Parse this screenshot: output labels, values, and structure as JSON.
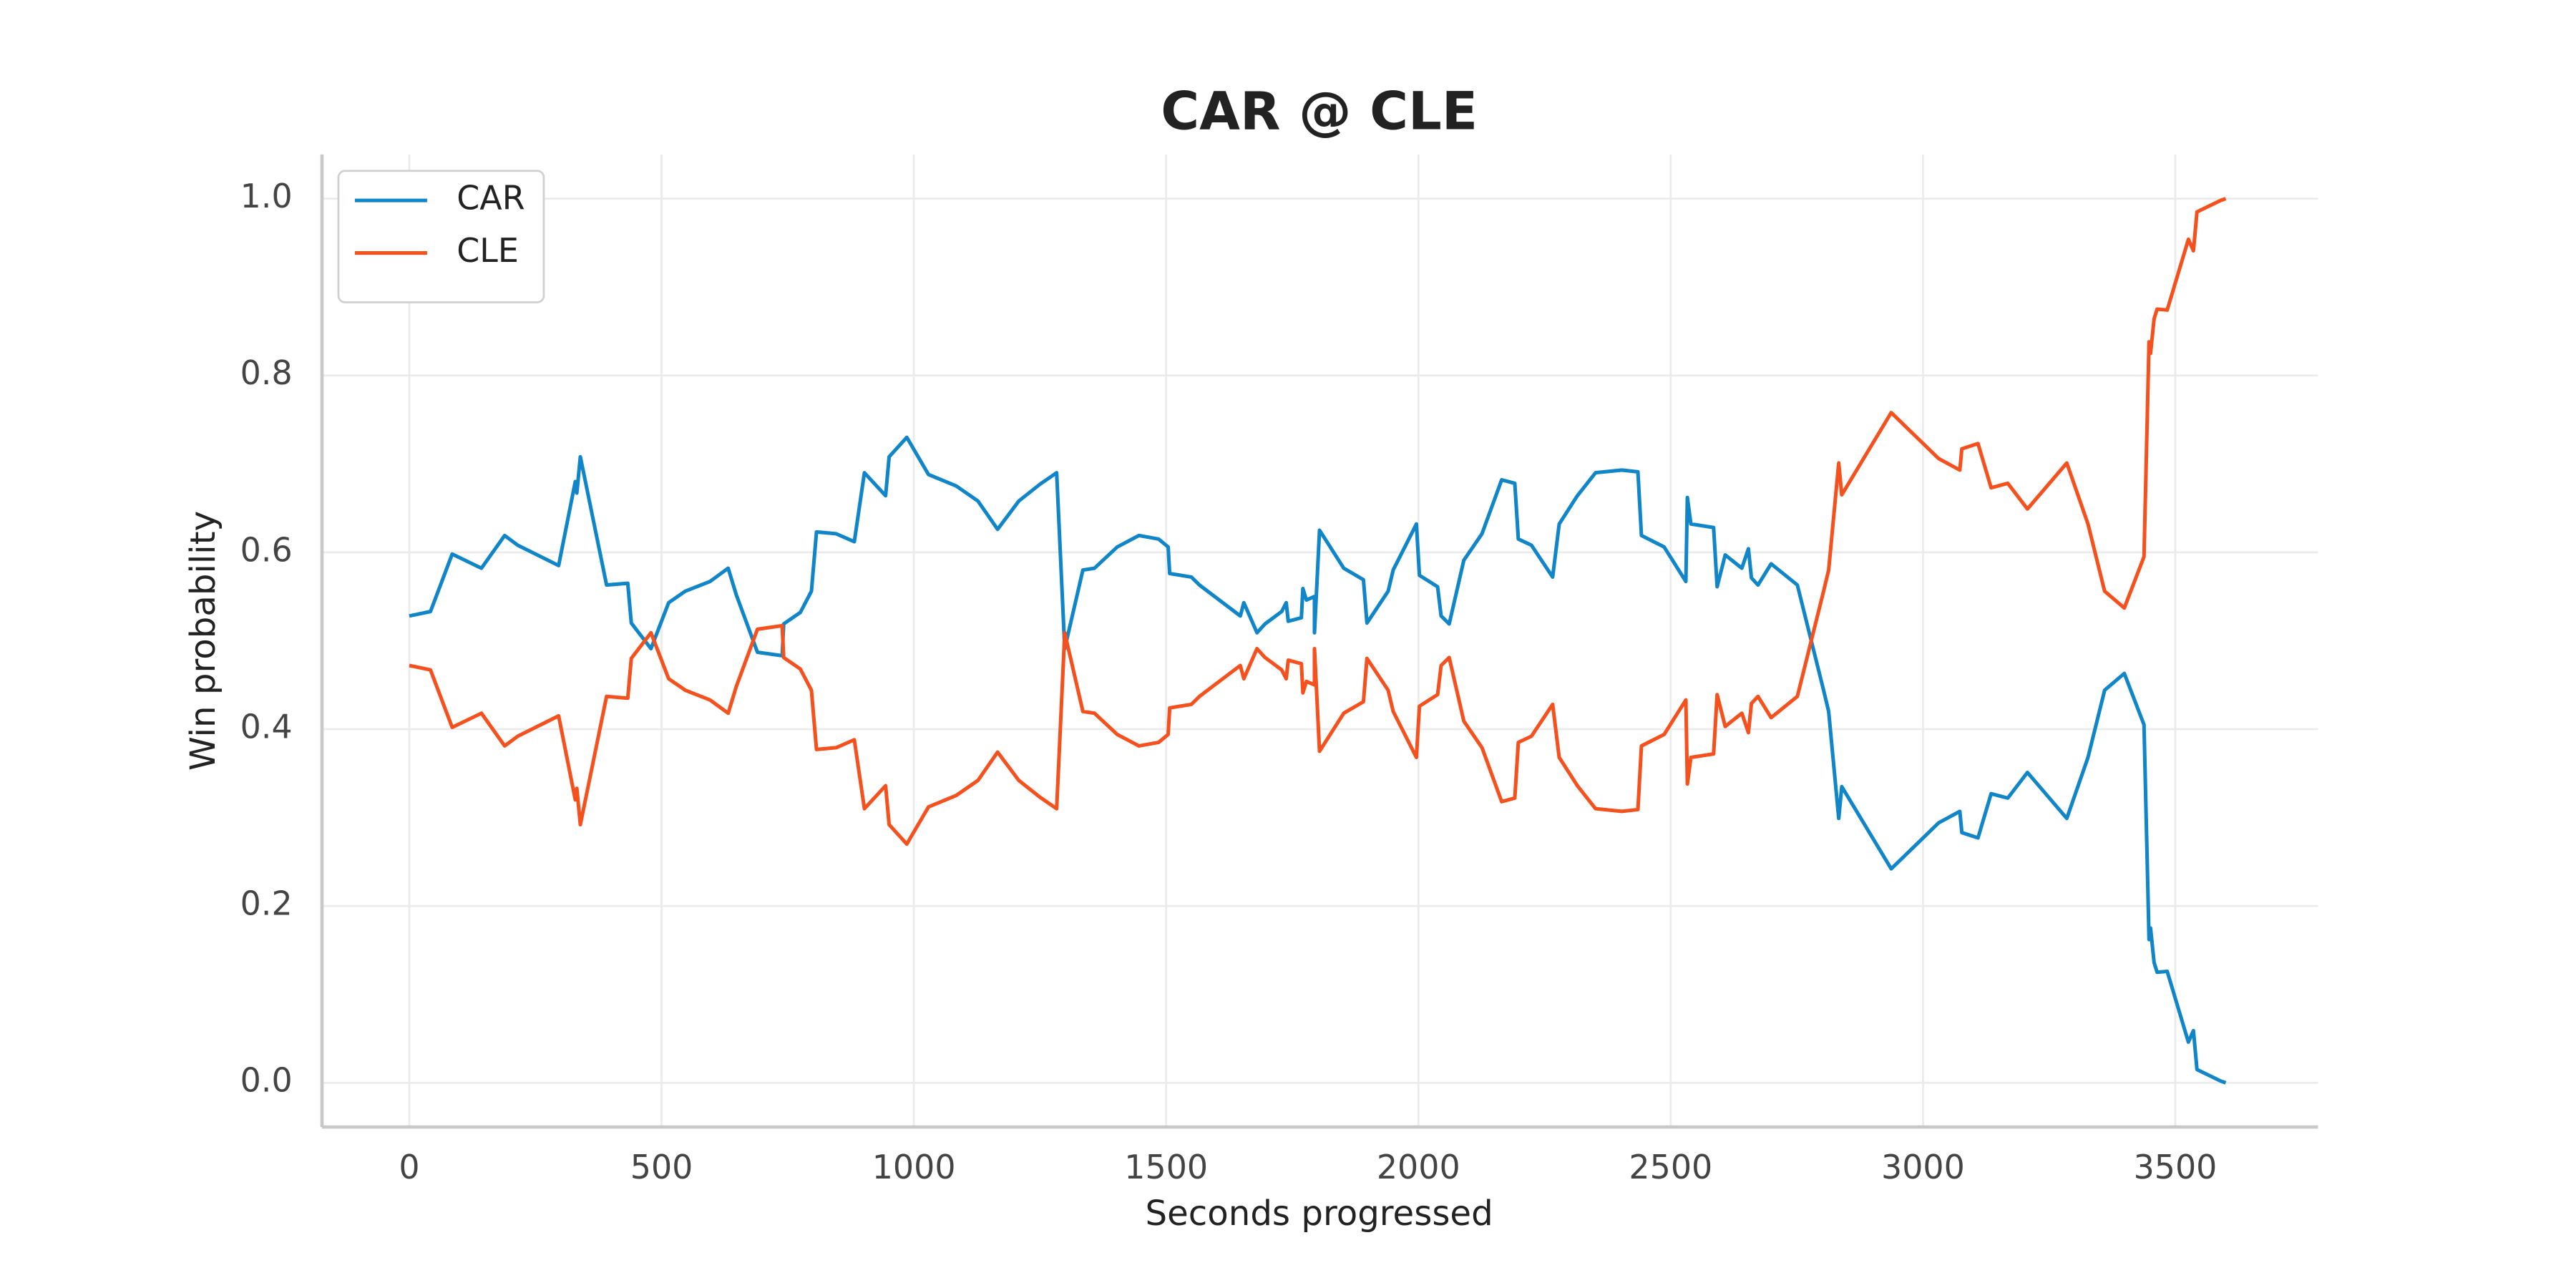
{
  "chart_data": {
    "type": "line",
    "title": "CAR @ CLE",
    "x_label": "Seconds progressed",
    "y_label": "Win probability",
    "xlim": [
      -173,
      3783
    ],
    "ylim": [
      -0.05,
      1.05
    ],
    "xticks": [
      0,
      500,
      1000,
      1500,
      2000,
      2500,
      3000,
      3500
    ],
    "yticks": [
      {
        "value": 0,
        "label": "0.0"
      },
      0.2,
      0.4,
      0.6,
      0.8,
      {
        "value": 1,
        "label": "1.0"
      }
    ],
    "grid": true,
    "legend": "upper-left",
    "x": [
      0,
      42,
      85,
      143,
      189,
      215,
      296,
      329,
      332,
      339,
      391,
      433,
      440,
      479,
      514,
      547,
      596,
      632,
      648,
      690,
      739,
      742,
      775,
      797,
      807,
      846,
      882,
      902,
      944,
      951,
      986,
      1029,
      1084,
      1127,
      1166,
      1208,
      1250,
      1283,
      1299,
      1335,
      1358,
      1403,
      1446,
      1485,
      1504,
      1507,
      1550,
      1566,
      1647,
      1654,
      1680,
      1696,
      1729,
      1738,
      1742,
      1768,
      1771,
      1778,
      1794,
      1794,
      1804,
      1852,
      1891,
      1898,
      1940,
      1950,
      1996,
      2002,
      2038,
      2045,
      2061,
      2090,
      2126,
      2165,
      2191,
      2198,
      2224,
      2266,
      2279,
      2315,
      2351,
      2403,
      2435,
      2442,
      2487,
      2530,
      2533,
      2540,
      2585,
      2592,
      2608,
      2641,
      2654,
      2660,
      2673,
      2699,
      2751,
      2803,
      2813,
      2833,
      2839,
      2937,
      3031,
      3073,
      3077,
      3109,
      3135,
      3168,
      3207,
      3285,
      3327,
      3360,
      3399,
      3438,
      3448,
      3451,
      3458,
      3464,
      3484,
      3526,
      3536,
      3543,
      3590,
      3600
    ],
    "series": [
      {
        "name": "CAR",
        "color": "#1085c8",
        "values": [
          0.528,
          0.533,
          0.598,
          0.582,
          0.619,
          0.608,
          0.585,
          0.68,
          0.667,
          0.708,
          0.563,
          0.565,
          0.52,
          0.491,
          0.543,
          0.556,
          0.567,
          0.582,
          0.552,
          0.487,
          0.483,
          0.519,
          0.532,
          0.556,
          0.623,
          0.621,
          0.612,
          0.69,
          0.664,
          0.708,
          0.73,
          0.688,
          0.675,
          0.658,
          0.626,
          0.658,
          0.677,
          0.69,
          0.491,
          0.58,
          0.582,
          0.606,
          0.619,
          0.615,
          0.606,
          0.576,
          0.572,
          0.563,
          0.528,
          0.543,
          0.509,
          0.519,
          0.533,
          0.543,
          0.522,
          0.526,
          0.559,
          0.546,
          0.55,
          0.509,
          0.625,
          0.582,
          0.569,
          0.52,
          0.556,
          0.58,
          0.632,
          0.574,
          0.561,
          0.528,
          0.519,
          0.591,
          0.621,
          0.682,
          0.678,
          0.615,
          0.608,
          0.572,
          0.632,
          0.664,
          0.69,
          0.693,
          0.691,
          0.619,
          0.606,
          0.567,
          0.662,
          0.632,
          0.628,
          0.561,
          0.597,
          0.582,
          0.604,
          0.571,
          0.563,
          0.587,
          0.563,
          0.444,
          0.42,
          0.299,
          0.335,
          0.242,
          0.294,
          0.307,
          0.283,
          0.277,
          0.327,
          0.322,
          0.351,
          0.299,
          0.368,
          0.444,
          0.463,
          0.405,
          0.162,
          0.175,
          0.136,
          0.125,
          0.126,
          0.046,
          0.059,
          0.015,
          0.002,
          0.0
        ]
      },
      {
        "name": "CLE",
        "color": "#f4511e",
        "values": [
          0.472,
          0.467,
          0.402,
          0.418,
          0.381,
          0.392,
          0.415,
          0.32,
          0.333,
          0.292,
          0.437,
          0.435,
          0.48,
          0.509,
          0.457,
          0.444,
          0.433,
          0.418,
          0.448,
          0.513,
          0.517,
          0.481,
          0.468,
          0.444,
          0.377,
          0.379,
          0.388,
          0.31,
          0.336,
          0.292,
          0.27,
          0.312,
          0.325,
          0.342,
          0.374,
          0.342,
          0.323,
          0.31,
          0.509,
          0.42,
          0.418,
          0.394,
          0.381,
          0.385,
          0.394,
          0.424,
          0.428,
          0.437,
          0.472,
          0.457,
          0.491,
          0.481,
          0.467,
          0.457,
          0.478,
          0.474,
          0.441,
          0.454,
          0.45,
          0.491,
          0.375,
          0.418,
          0.431,
          0.48,
          0.444,
          0.42,
          0.368,
          0.426,
          0.439,
          0.472,
          0.481,
          0.409,
          0.379,
          0.318,
          0.322,
          0.385,
          0.392,
          0.428,
          0.368,
          0.336,
          0.31,
          0.307,
          0.309,
          0.381,
          0.394,
          0.433,
          0.338,
          0.368,
          0.372,
          0.439,
          0.403,
          0.418,
          0.396,
          0.429,
          0.437,
          0.413,
          0.437,
          0.556,
          0.58,
          0.701,
          0.665,
          0.758,
          0.706,
          0.693,
          0.717,
          0.723,
          0.673,
          0.678,
          0.649,
          0.701,
          0.632,
          0.556,
          0.537,
          0.595,
          0.838,
          0.825,
          0.864,
          0.875,
          0.874,
          0.954,
          0.941,
          0.985,
          0.998,
          1.0
        ]
      }
    ]
  }
}
